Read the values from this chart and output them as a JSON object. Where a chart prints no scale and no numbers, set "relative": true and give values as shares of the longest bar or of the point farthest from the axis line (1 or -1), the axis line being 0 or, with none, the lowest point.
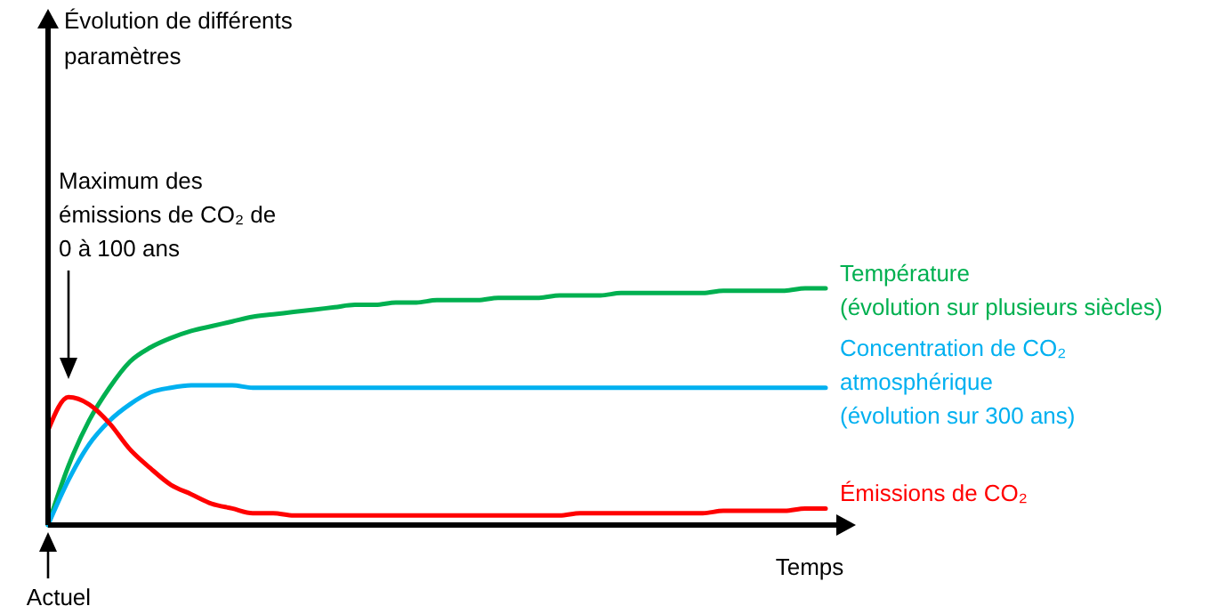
{
  "chart_data": {
    "type": "line",
    "relative": true,
    "xlabel": "Temps",
    "legend": false,
    "categories": [
      null,
      null,
      null,
      null,
      null,
      null,
      null,
      null,
      null,
      null,
      null,
      null,
      null,
      null,
      null,
      null,
      null,
      null,
      null,
      null,
      null,
      null,
      null,
      null,
      null,
      null,
      null,
      null,
      null,
      null,
      null,
      null,
      null,
      null,
      null,
      null,
      null,
      null,
      null
    ],
    "series": [
      {
        "name": "Température\n(évolution sur plusieurs siècles)",
        "color": "#00b050",
        "values": [
          0,
          0.25,
          0.44,
          0.58,
          0.69,
          0.75,
          0.79,
          0.82,
          0.84,
          0.86,
          0.88,
          0.89,
          0.9,
          0.91,
          0.92,
          0.93,
          0.93,
          0.94,
          0.94,
          0.95,
          0.95,
          0.95,
          0.96,
          0.96,
          0.96,
          0.97,
          0.97,
          0.97,
          0.98,
          0.98,
          0.98,
          0.98,
          0.98,
          0.99,
          0.99,
          0.99,
          0.99,
          1,
          1
        ]
      },
      {
        "name": "Concentration de CO₂\natmosphérique\n(évolution sur 300 ans)",
        "color": "#00b0f0",
        "values": [
          0,
          0.19,
          0.34,
          0.44,
          0.51,
          0.56,
          0.58,
          0.59,
          0.59,
          0.59,
          0.58,
          0.58,
          0.58,
          0.58,
          0.58,
          0.58,
          0.58,
          0.58,
          0.58,
          0.58,
          0.58,
          0.58,
          0.58,
          0.58,
          0.58,
          0.58,
          0.58,
          0.58,
          0.58,
          0.58,
          0.58,
          0.58,
          0.58,
          0.58,
          0.58,
          0.58,
          0.58,
          0.58,
          0.58
        ]
      },
      {
        "name": "Émissions de CO₂",
        "color": "#ff0000",
        "values": [
          0.4,
          0.54,
          0.51,
          0.43,
          0.32,
          0.24,
          0.17,
          0.13,
          0.09,
          0.07,
          0.05,
          0.05,
          0.04,
          0.04,
          0.04,
          0.04,
          0.04,
          0.04,
          0.04,
          0.04,
          0.04,
          0.04,
          0.04,
          0.04,
          0.04,
          0.04,
          0.05,
          0.05,
          0.05,
          0.05,
          0.05,
          0.05,
          0.05,
          0.06,
          0.06,
          0.06,
          0.06,
          0.07,
          0.07
        ]
      }
    ],
    "annotations": [
      "Maximum des\némissions de CO₂ de\n0 à 100 ans",
      "Actuel",
      "Évolution de différents\nparamètres"
    ]
  }
}
